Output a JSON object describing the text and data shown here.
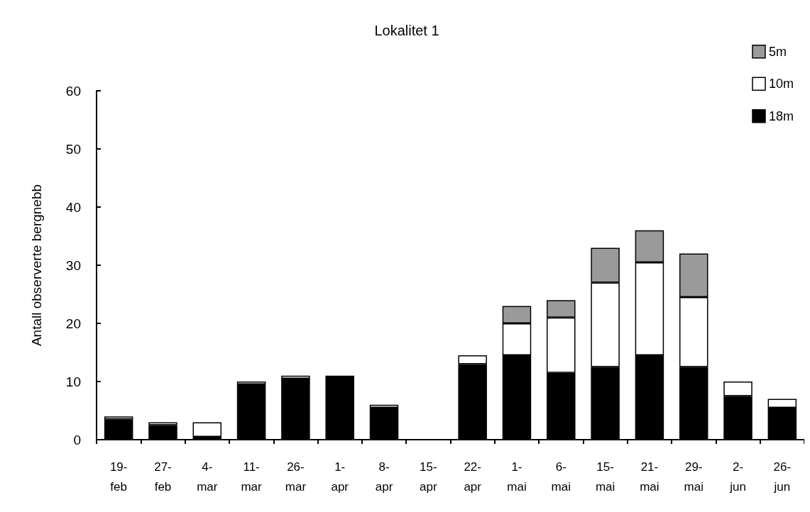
{
  "chart_data": {
    "type": "bar",
    "title": "Lokalitet 1",
    "ylabel": "Antall observerte bergnebb",
    "categories": [
      "19-\nfeb",
      "27-\nfeb",
      "4-\nmar",
      "11-\nmar",
      "26-\nmar",
      "1-\napr",
      "8-\napr",
      "15-\napr",
      "22-\napr",
      "1-\nmai",
      "6-\nmai",
      "15-\nmai",
      "21-\nmai",
      "29-\nmai",
      "2-\njun",
      "26-\njun"
    ],
    "stacked": true,
    "series": [
      {
        "name": "18m",
        "color": "#000000",
        "values": [
          3.5,
          2.5,
          0.5,
          9.5,
          10.5,
          11,
          5.5,
          0,
          13,
          14.5,
          11.5,
          12.5,
          14.5,
          12.5,
          7.5,
          5.5
        ]
      },
      {
        "name": "10m",
        "color": "#ffffff",
        "values": [
          0.5,
          0.5,
          2.5,
          0.5,
          0.5,
          0,
          0.5,
          0,
          1.5,
          5.5,
          9.5,
          14.5,
          16,
          12,
          2.5,
          1.5
        ]
      },
      {
        "name": "5m",
        "color": "#9a9a9a",
        "values": [
          0,
          0,
          0,
          0,
          0,
          0,
          0,
          0,
          0,
          3,
          3,
          6,
          5.5,
          7.5,
          0,
          0
        ]
      }
    ],
    "ylim": [
      0,
      60
    ],
    "yticks": [
      0,
      10,
      20,
      30,
      40,
      50,
      60
    ],
    "grid": false,
    "legend": "top right"
  }
}
